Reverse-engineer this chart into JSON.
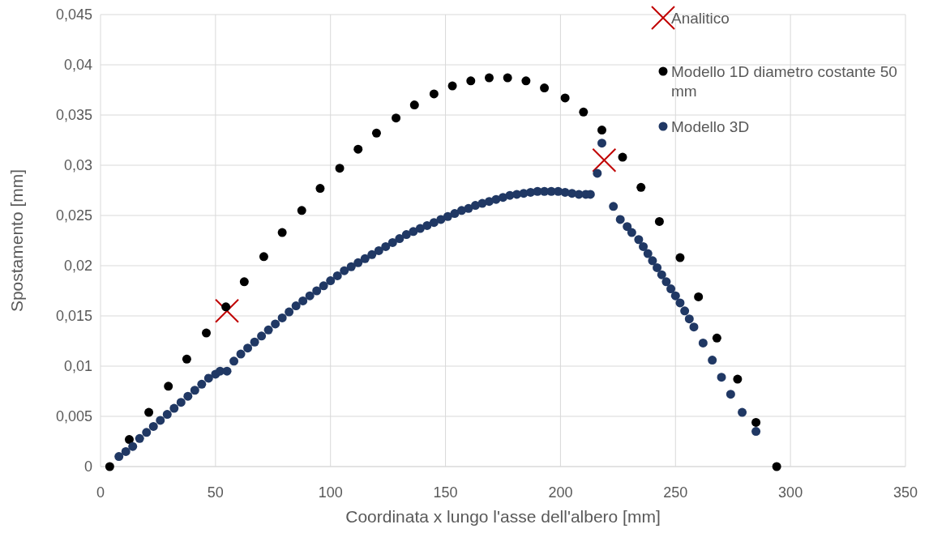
{
  "chart_data": {
    "type": "scatter",
    "xlabel": "Coordinata x lungo l'asse dell'albero [mm]",
    "ylabel": "Spostamento [mm]",
    "xlim": [
      0,
      350
    ],
    "xticks": [
      0,
      50,
      100,
      150,
      200,
      250,
      300,
      350
    ],
    "ylim": [
      0,
      0.045
    ],
    "yticks": [
      0,
      {
        "value": 0.005,
        "label": "0,005"
      },
      {
        "value": 0.01,
        "label": "0,01"
      },
      {
        "value": 0.015,
        "label": "0,015"
      },
      {
        "value": 0.02,
        "label": "0,02"
      },
      {
        "value": 0.025,
        "label": "0,025"
      },
      {
        "value": 0.03,
        "label": "0,03"
      },
      {
        "value": 0.035,
        "label": "0,035"
      },
      {
        "value": 0.04,
        "label": "0,04"
      },
      {
        "value": 0.045,
        "label": "0,045"
      }
    ],
    "grid": true,
    "legend": "top right",
    "series": [
      {
        "name": "Analitico",
        "color": "#c00000",
        "marker": "cross",
        "x": [
          55,
          219
        ],
        "values": [
          0.0155,
          0.0305
        ]
      },
      {
        "name": "Modello 1D diametro costante 50 mm",
        "color": "#000000",
        "marker": "circle",
        "x": [
          4,
          12.5,
          21,
          29.5,
          37.5,
          46,
          54.5,
          62.5,
          71,
          79,
          87.5,
          95.5,
          104,
          112,
          120,
          128.5,
          136.5,
          145,
          153,
          161,
          169,
          177,
          185,
          193,
          202,
          210,
          218,
          227,
          235,
          243,
          252,
          260,
          268,
          277,
          285,
          294
        ],
        "values": [
          0,
          0.0027,
          0.0054,
          0.008,
          0.0107,
          0.0133,
          0.0159,
          0.0184,
          0.0209,
          0.0233,
          0.0255,
          0.0277,
          0.0297,
          0.0316,
          0.0332,
          0.0347,
          0.036,
          0.0371,
          0.0379,
          0.0384,
          0.0387,
          0.0387,
          0.0384,
          0.0377,
          0.0367,
          0.0353,
          0.0335,
          0.0308,
          0.0278,
          0.0244,
          0.0208,
          0.0169,
          0.0128,
          0.0087,
          0.0044,
          0
        ]
      },
      {
        "name": "Modello 3D",
        "color": "#203864",
        "marker": "circle",
        "x": [
          8,
          11,
          14,
          17,
          20,
          23,
          26,
          29,
          32,
          35,
          38,
          41,
          44,
          47,
          50,
          52,
          55,
          58,
          61,
          64,
          67,
          70,
          73,
          76,
          79,
          82,
          85,
          88,
          91,
          94,
          97,
          100,
          103,
          106,
          109,
          112,
          115,
          118,
          121,
          124,
          127,
          130,
          133,
          136,
          139,
          142,
          145,
          148,
          151,
          154,
          157,
          160,
          163,
          166,
          169,
          172,
          175,
          178,
          181,
          184,
          187,
          190,
          193,
          196,
          199,
          202,
          205,
          208,
          211,
          213,
          216,
          218,
          223,
          226,
          229,
          231,
          234,
          236,
          238,
          240,
          242,
          244,
          246,
          248,
          250,
          252,
          254,
          256,
          258,
          262,
          266,
          270,
          274,
          279,
          285
        ],
        "values": [
          0.001,
          0.0015,
          0.002,
          0.0028,
          0.0034,
          0.004,
          0.0046,
          0.0052,
          0.0058,
          0.0064,
          0.007,
          0.0076,
          0.0082,
          0.0088,
          0.0092,
          0.0095,
          0.0095,
          0.0105,
          0.0112,
          0.0118,
          0.0124,
          0.013,
          0.0136,
          0.0142,
          0.0148,
          0.0154,
          0.016,
          0.0165,
          0.017,
          0.0175,
          0.018,
          0.0185,
          0.019,
          0.0195,
          0.0199,
          0.0203,
          0.0207,
          0.0211,
          0.0215,
          0.0219,
          0.0223,
          0.0227,
          0.0231,
          0.0234,
          0.0237,
          0.024,
          0.0243,
          0.0246,
          0.0249,
          0.0252,
          0.0255,
          0.0257,
          0.026,
          0.0262,
          0.0264,
          0.0266,
          0.0268,
          0.027,
          0.0271,
          0.0272,
          0.0273,
          0.0274,
          0.0274,
          0.0274,
          0.0274,
          0.0273,
          0.0272,
          0.0271,
          0.0271,
          0.0271,
          0.0292,
          0.0322,
          0.0259,
          0.0246,
          0.0239,
          0.0233,
          0.0226,
          0.0219,
          0.0212,
          0.0205,
          0.0198,
          0.0191,
          0.0184,
          0.0177,
          0.017,
          0.0163,
          0.0155,
          0.0147,
          0.0139,
          0.0123,
          0.0106,
          0.0089,
          0.0072,
          0.0054,
          0.0035
        ]
      }
    ]
  }
}
